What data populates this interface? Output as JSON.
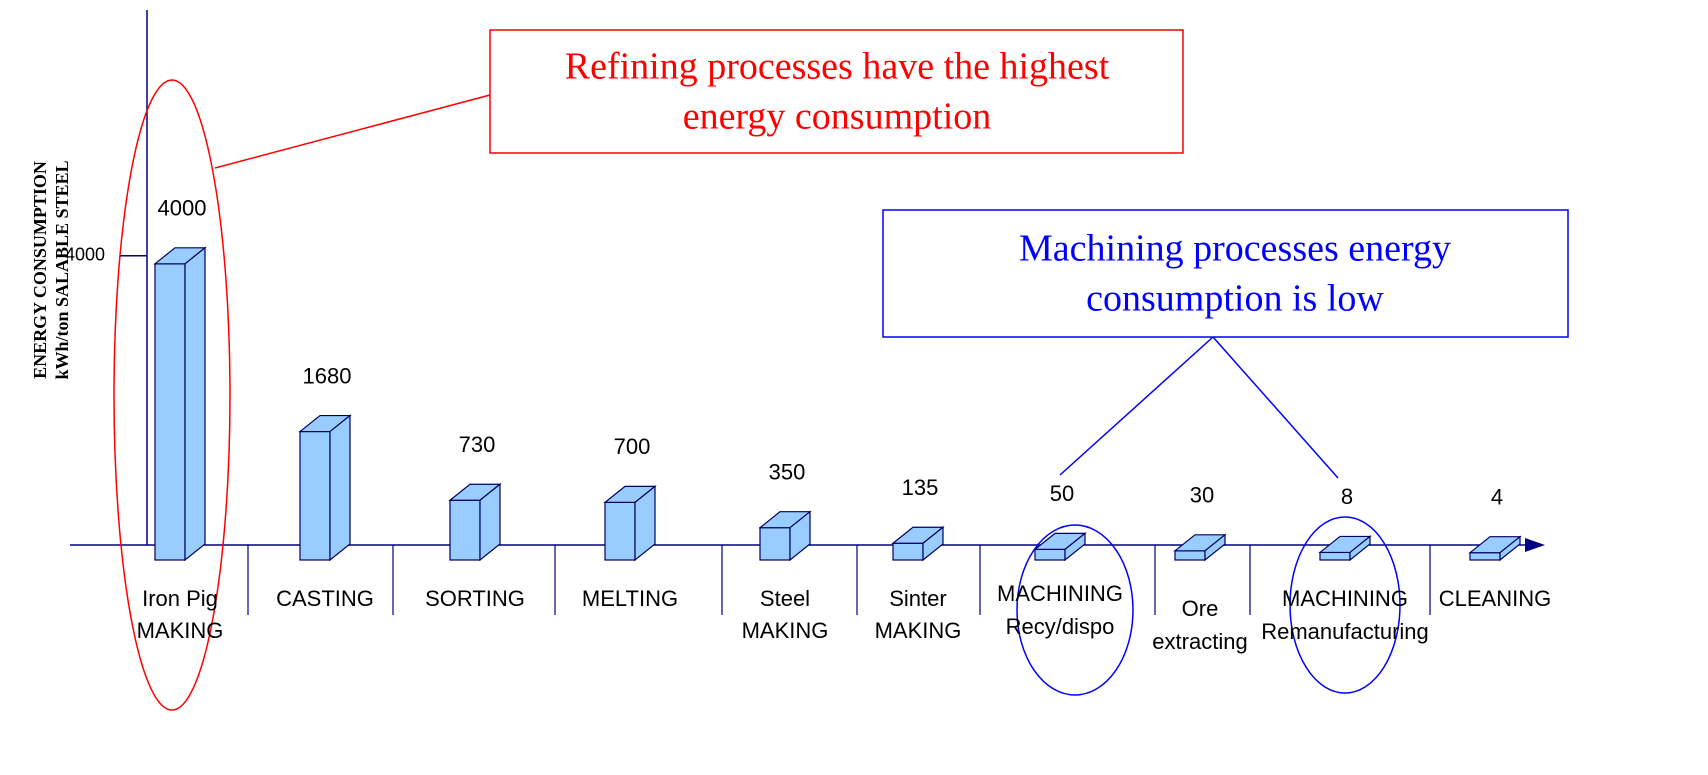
{
  "chart_data": {
    "type": "bar3d",
    "y_axis_label": [
      "ENERGY CONSUMPTION",
      "kWh/ton SALABLE STEEL"
    ],
    "categories": [
      [
        "Iron Pig",
        "MAKING"
      ],
      [
        "CASTING"
      ],
      [
        "SORTING"
      ],
      [
        "MELTING"
      ],
      [
        "Steel",
        "MAKING"
      ],
      [
        "Sinter",
        "MAKING"
      ],
      [
        "MACHINING",
        "Recy/dispo"
      ],
      [
        "Ore",
        "extracting"
      ],
      [
        "MACHINING",
        "Remanufacturing"
      ],
      [
        "CLEANING"
      ]
    ],
    "values": [
      4000,
      1680,
      730,
      700,
      350,
      135,
      50,
      30,
      8,
      4
    ],
    "color": "#99ccff",
    "ylim": [
      0,
      7400
    ],
    "yticks": [
      4000
    ],
    "annotations": [
      {
        "text": [
          "Refining processes have the highest",
          "energy consumption"
        ],
        "color": "#ff0000"
      },
      {
        "text": [
          "Machining processes energy",
          "consumption is low"
        ],
        "color": "#0000ff"
      }
    ]
  }
}
